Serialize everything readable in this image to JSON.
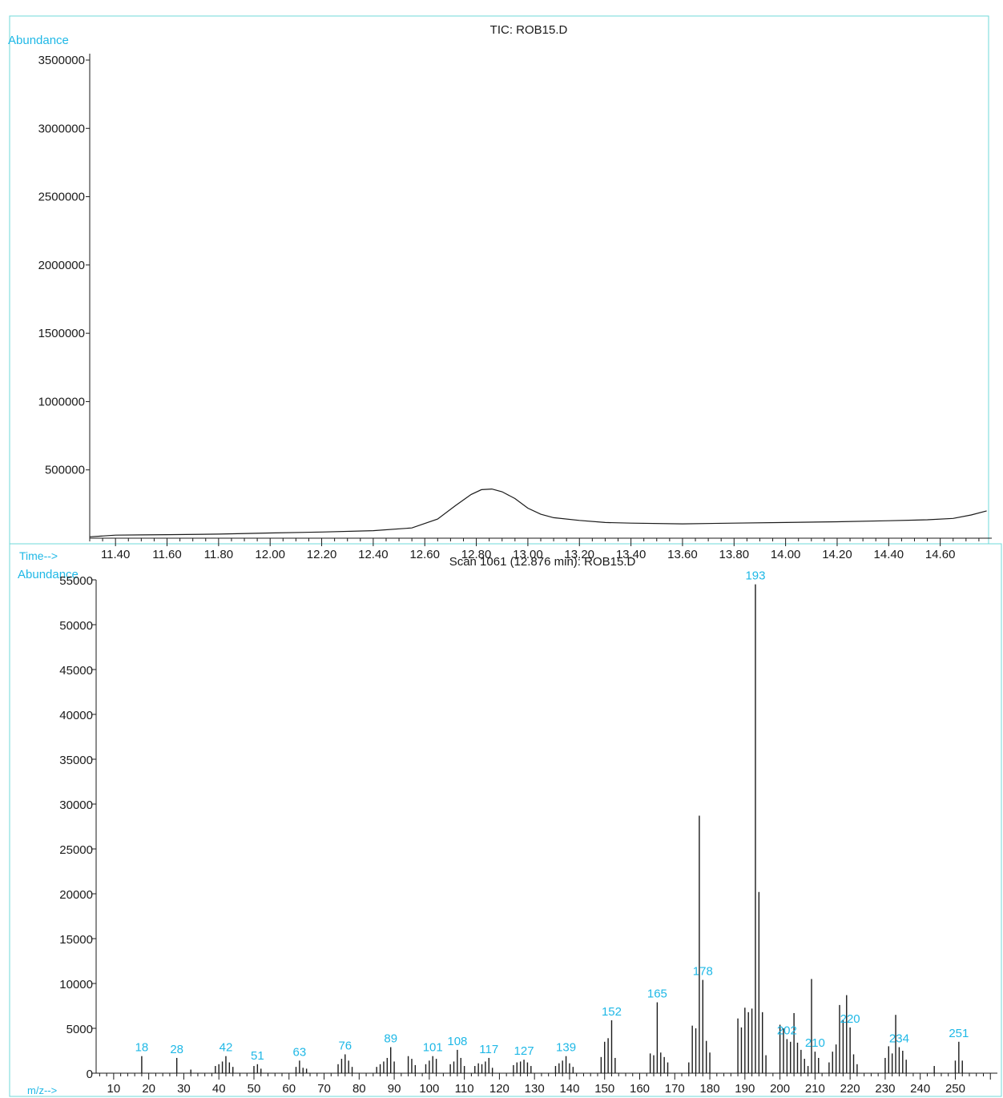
{
  "colors": {
    "frame": "#6fd8d8",
    "axis_label": "#1fb8e6",
    "peak_label": "#1fb8e6",
    "ink": "#1a1a1a"
  },
  "chart_data": [
    {
      "type": "line",
      "title": "TIC: ROB15.D",
      "ylabel": "Abundance",
      "xlabel": "Time-->",
      "xlim": [
        11.3,
        14.8
      ],
      "ylim": [
        0,
        3500000
      ],
      "x_ticks": [
        11.4,
        11.6,
        11.8,
        12.0,
        12.2,
        12.4,
        12.6,
        12.8,
        13.0,
        13.2,
        13.4,
        13.6,
        13.8,
        14.0,
        14.2,
        14.4,
        14.6
      ],
      "x_tick_labels": [
        "11.40",
        "11.60",
        "11.80",
        "12.00",
        "12.20",
        "12.40",
        "12.60",
        "12.80",
        "13.00",
        "13.20",
        "13.40",
        "13.60",
        "13.80",
        "14.00",
        "14.20",
        "14.40",
        "14.60"
      ],
      "y_ticks": [
        500000,
        1000000,
        1500000,
        2000000,
        2500000,
        3000000,
        3500000
      ],
      "y_tick_labels": [
        "500000",
        "1000000",
        "1500000",
        "2000000",
        "2500000",
        "3000000",
        "3500000"
      ],
      "grid": false,
      "series": [
        {
          "x": [
            11.3,
            11.4,
            11.5,
            11.6,
            11.8,
            12.0,
            12.2,
            12.4,
            12.55,
            12.65,
            12.72,
            12.78,
            12.82,
            12.86,
            12.9,
            12.95,
            13.0,
            13.05,
            13.1,
            13.2,
            13.3,
            13.4,
            13.6,
            13.8,
            14.0,
            14.2,
            14.4,
            14.55,
            14.65,
            14.72,
            14.78
          ],
          "y": [
            10000,
            22000,
            24000,
            26000,
            30000,
            38000,
            45000,
            55000,
            75000,
            140000,
            240000,
            320000,
            355000,
            360000,
            340000,
            290000,
            220000,
            175000,
            150000,
            130000,
            115000,
            110000,
            105000,
            110000,
            115000,
            120000,
            128000,
            135000,
            145000,
            170000,
            200000
          ]
        }
      ]
    },
    {
      "type": "bar",
      "title": "Scan 1061 (12.876 min): ROB15.D",
      "ylabel": "Abundance",
      "xlabel": "m/z-->",
      "xlim": [
        5,
        262
      ],
      "ylim": [
        0,
        55000
      ],
      "x_ticks": [
        10,
        20,
        30,
        40,
        50,
        60,
        70,
        80,
        90,
        100,
        110,
        120,
        130,
        140,
        150,
        160,
        170,
        180,
        190,
        200,
        210,
        220,
        230,
        240,
        250
      ],
      "x_tick_labels": [
        "10",
        "20",
        "30",
        "40",
        "50",
        "60",
        "70",
        "80",
        "90",
        "100",
        "110",
        "120",
        "130",
        "140",
        "150",
        "160",
        "170",
        "180",
        "190",
        "200",
        "210",
        "220",
        "230",
        "240",
        "250"
      ],
      "y_ticks": [
        0,
        5000,
        10000,
        15000,
        20000,
        25000,
        30000,
        35000,
        40000,
        45000,
        50000,
        55000
      ],
      "y_tick_labels": [
        "0",
        "5000",
        "10000",
        "15000",
        "20000",
        "25000",
        "30000",
        "35000",
        "40000",
        "45000",
        "50000",
        "55000"
      ],
      "grid": false,
      "peaks": [
        [
          18,
          1900
        ],
        [
          28,
          1700
        ],
        [
          32,
          400
        ],
        [
          39,
          800
        ],
        [
          40,
          1000
        ],
        [
          41,
          1300
        ],
        [
          42,
          1900
        ],
        [
          43,
          1200
        ],
        [
          44,
          700
        ],
        [
          50,
          800
        ],
        [
          51,
          1000
        ],
        [
          52,
          500
        ],
        [
          62,
          700
        ],
        [
          63,
          1400
        ],
        [
          64,
          600
        ],
        [
          65,
          500
        ],
        [
          74,
          1000
        ],
        [
          75,
          1600
        ],
        [
          76,
          2100
        ],
        [
          77,
          1400
        ],
        [
          78,
          700
        ],
        [
          85,
          700
        ],
        [
          86,
          1000
        ],
        [
          87,
          1300
        ],
        [
          88,
          1700
        ],
        [
          89,
          2900
        ],
        [
          90,
          1300
        ],
        [
          94,
          1900
        ],
        [
          95,
          1600
        ],
        [
          96,
          900
        ],
        [
          99,
          1000
        ],
        [
          100,
          1400
        ],
        [
          101,
          1900
        ],
        [
          102,
          1600
        ],
        [
          106,
          1000
        ],
        [
          107,
          1300
        ],
        [
          108,
          2600
        ],
        [
          109,
          1700
        ],
        [
          110,
          800
        ],
        [
          113,
          800
        ],
        [
          114,
          1100
        ],
        [
          115,
          1000
        ],
        [
          116,
          1300
        ],
        [
          117,
          1700
        ],
        [
          118,
          600
        ],
        [
          124,
          900
        ],
        [
          125,
          1200
        ],
        [
          126,
          1300
        ],
        [
          127,
          1500
        ],
        [
          128,
          1200
        ],
        [
          129,
          800
        ],
        [
          136,
          800
        ],
        [
          137,
          1100
        ],
        [
          138,
          1400
        ],
        [
          139,
          1900
        ],
        [
          140,
          1100
        ],
        [
          141,
          700
        ],
        [
          149,
          1800
        ],
        [
          150,
          3500
        ],
        [
          151,
          3900
        ],
        [
          152,
          5900
        ],
        [
          153,
          1700
        ],
        [
          163,
          2200
        ],
        [
          164,
          2000
        ],
        [
          165,
          7900
        ],
        [
          166,
          2300
        ],
        [
          167,
          1800
        ],
        [
          168,
          1200
        ],
        [
          174,
          1200
        ],
        [
          175,
          5300
        ],
        [
          176,
          5000
        ],
        [
          177,
          28700
        ],
        [
          178,
          10400
        ],
        [
          179,
          3600
        ],
        [
          180,
          2300
        ],
        [
          188,
          6100
        ],
        [
          189,
          5100
        ],
        [
          190,
          7300
        ],
        [
          191,
          6800
        ],
        [
          192,
          7200
        ],
        [
          193,
          54500
        ],
        [
          194,
          20200
        ],
        [
          195,
          6800
        ],
        [
          196,
          2000
        ],
        [
          200,
          5400
        ],
        [
          201,
          5000
        ],
        [
          202,
          3800
        ],
        [
          203,
          3500
        ],
        [
          204,
          6700
        ],
        [
          205,
          3400
        ],
        [
          206,
          2600
        ],
        [
          207,
          1600
        ],
        [
          208,
          800
        ],
        [
          209,
          10500
        ],
        [
          210,
          2400
        ],
        [
          211,
          1700
        ],
        [
          214,
          1200
        ],
        [
          215,
          2400
        ],
        [
          216,
          3200
        ],
        [
          217,
          7600
        ],
        [
          218,
          5900
        ],
        [
          219,
          8700
        ],
        [
          220,
          5100
        ],
        [
          221,
          2100
        ],
        [
          222,
          1000
        ],
        [
          230,
          1700
        ],
        [
          231,
          3000
        ],
        [
          232,
          2200
        ],
        [
          233,
          6500
        ],
        [
          234,
          2900
        ],
        [
          235,
          2500
        ],
        [
          236,
          1500
        ],
        [
          244,
          800
        ],
        [
          250,
          1400
        ],
        [
          251,
          3500
        ],
        [
          252,
          1400
        ]
      ],
      "peak_labels": [
        {
          "mz": 18,
          "text": "18"
        },
        {
          "mz": 28,
          "text": "28"
        },
        {
          "mz": 42,
          "text": "42"
        },
        {
          "mz": 51,
          "text": "51"
        },
        {
          "mz": 63,
          "text": "63"
        },
        {
          "mz": 76,
          "text": "76"
        },
        {
          "mz": 89,
          "text": "89"
        },
        {
          "mz": 101,
          "text": "101"
        },
        {
          "mz": 108,
          "text": "108"
        },
        {
          "mz": 117,
          "text": "117"
        },
        {
          "mz": 127,
          "text": "127"
        },
        {
          "mz": 139,
          "text": "139"
        },
        {
          "mz": 152,
          "text": "152"
        },
        {
          "mz": 165,
          "text": "165"
        },
        {
          "mz": 178,
          "text": "178"
        },
        {
          "mz": 193,
          "text": "193"
        },
        {
          "mz": 202,
          "text": "202"
        },
        {
          "mz": 210,
          "text": "210"
        },
        {
          "mz": 220,
          "text": "220"
        },
        {
          "mz": 234,
          "text": "234"
        },
        {
          "mz": 251,
          "text": "251"
        }
      ]
    }
  ]
}
